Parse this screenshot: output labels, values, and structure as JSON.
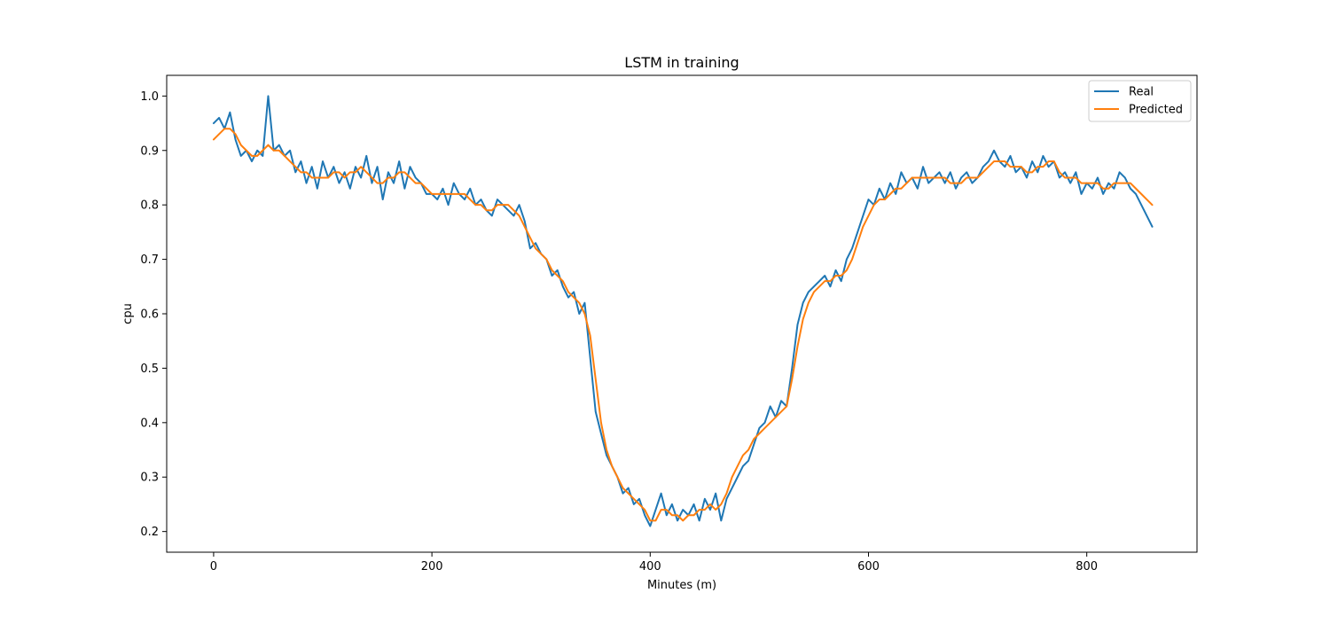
{
  "chart_data": {
    "type": "line",
    "title": "LSTM in training",
    "xlabel": "Minutes (m)",
    "ylabel": "cpu",
    "xlim": [
      -43,
      901
    ],
    "ylim": [
      0.162,
      1.038
    ],
    "xticks": [
      0,
      200,
      400,
      600,
      800
    ],
    "xtick_labels": [
      "0",
      "200",
      "400",
      "600",
      "800"
    ],
    "yticks": [
      0.2,
      0.3,
      0.4,
      0.5,
      0.6,
      0.7,
      0.8,
      0.9,
      1.0
    ],
    "ytick_labels": [
      "0.2",
      "0.3",
      "0.4",
      "0.5",
      "0.6",
      "0.7",
      "0.8",
      "0.9",
      "1.0"
    ],
    "grid": false,
    "legend_position": "top-right",
    "series": [
      {
        "name": "Real",
        "color": "#1f77b4",
        "x": [
          0,
          5,
          10,
          15,
          20,
          25,
          30,
          35,
          40,
          45,
          50,
          55,
          60,
          65,
          70,
          75,
          80,
          85,
          90,
          95,
          100,
          105,
          110,
          115,
          120,
          125,
          130,
          135,
          140,
          145,
          150,
          155,
          160,
          165,
          170,
          175,
          180,
          185,
          190,
          195,
          200,
          205,
          210,
          215,
          220,
          225,
          230,
          235,
          240,
          245,
          250,
          255,
          260,
          265,
          270,
          275,
          280,
          285,
          290,
          295,
          300,
          305,
          310,
          315,
          320,
          325,
          330,
          335,
          340,
          345,
          350,
          355,
          360,
          365,
          370,
          375,
          380,
          385,
          390,
          395,
          400,
          405,
          410,
          415,
          420,
          425,
          430,
          435,
          440,
          445,
          450,
          455,
          460,
          465,
          470,
          475,
          480,
          485,
          490,
          495,
          500,
          505,
          510,
          515,
          520,
          525,
          530,
          535,
          540,
          545,
          550,
          555,
          560,
          565,
          570,
          575,
          580,
          585,
          590,
          595,
          600,
          605,
          610,
          615,
          620,
          625,
          630,
          635,
          640,
          645,
          650,
          655,
          660,
          665,
          670,
          675,
          680,
          685,
          690,
          695,
          700,
          705,
          710,
          715,
          720,
          725,
          730,
          735,
          740,
          745,
          750,
          755,
          760,
          765,
          770,
          775,
          780,
          785,
          790,
          795,
          800,
          805,
          810,
          815,
          820,
          825,
          830,
          835,
          840,
          845,
          850,
          855,
          860
        ],
        "values": [
          0.95,
          0.96,
          0.94,
          0.97,
          0.92,
          0.89,
          0.9,
          0.88,
          0.9,
          0.89,
          1.0,
          0.9,
          0.91,
          0.89,
          0.9,
          0.86,
          0.88,
          0.84,
          0.87,
          0.83,
          0.88,
          0.85,
          0.87,
          0.84,
          0.86,
          0.83,
          0.87,
          0.85,
          0.89,
          0.84,
          0.87,
          0.81,
          0.86,
          0.84,
          0.88,
          0.83,
          0.87,
          0.85,
          0.84,
          0.82,
          0.82,
          0.81,
          0.83,
          0.8,
          0.84,
          0.82,
          0.81,
          0.83,
          0.8,
          0.81,
          0.79,
          0.78,
          0.81,
          0.8,
          0.79,
          0.78,
          0.8,
          0.77,
          0.72,
          0.73,
          0.71,
          0.7,
          0.67,
          0.68,
          0.65,
          0.63,
          0.64,
          0.6,
          0.62,
          0.52,
          0.42,
          0.38,
          0.34,
          0.32,
          0.3,
          0.27,
          0.28,
          0.25,
          0.26,
          0.23,
          0.21,
          0.24,
          0.27,
          0.23,
          0.25,
          0.22,
          0.24,
          0.23,
          0.25,
          0.22,
          0.26,
          0.24,
          0.27,
          0.22,
          0.26,
          0.28,
          0.3,
          0.32,
          0.33,
          0.36,
          0.39,
          0.4,
          0.43,
          0.41,
          0.44,
          0.43,
          0.5,
          0.58,
          0.62,
          0.64,
          0.65,
          0.66,
          0.67,
          0.65,
          0.68,
          0.66,
          0.7,
          0.72,
          0.75,
          0.78,
          0.81,
          0.8,
          0.83,
          0.81,
          0.84,
          0.82,
          0.86,
          0.84,
          0.85,
          0.83,
          0.87,
          0.84,
          0.85,
          0.86,
          0.84,
          0.86,
          0.83,
          0.85,
          0.86,
          0.84,
          0.85,
          0.87,
          0.88,
          0.9,
          0.88,
          0.87,
          0.89,
          0.86,
          0.87,
          0.85,
          0.88,
          0.86,
          0.89,
          0.87,
          0.88,
          0.85,
          0.86,
          0.84,
          0.86,
          0.82,
          0.84,
          0.83,
          0.85,
          0.82,
          0.84,
          0.83,
          0.86,
          0.85,
          0.83,
          0.82,
          0.8,
          0.78,
          0.76
        ],
        "line_width": 2
      },
      {
        "name": "Predicted",
        "color": "#ff7f0e",
        "x": [
          0,
          5,
          10,
          15,
          20,
          25,
          30,
          35,
          40,
          45,
          50,
          55,
          60,
          65,
          70,
          75,
          80,
          85,
          90,
          95,
          100,
          105,
          110,
          115,
          120,
          125,
          130,
          135,
          140,
          145,
          150,
          155,
          160,
          165,
          170,
          175,
          180,
          185,
          190,
          195,
          200,
          205,
          210,
          215,
          220,
          225,
          230,
          235,
          240,
          245,
          250,
          255,
          260,
          265,
          270,
          275,
          280,
          285,
          290,
          295,
          300,
          305,
          310,
          315,
          320,
          325,
          330,
          335,
          340,
          345,
          350,
          355,
          360,
          365,
          370,
          375,
          380,
          385,
          390,
          395,
          400,
          405,
          410,
          415,
          420,
          425,
          430,
          435,
          440,
          445,
          450,
          455,
          460,
          465,
          470,
          475,
          480,
          485,
          490,
          495,
          500,
          505,
          510,
          515,
          520,
          525,
          530,
          535,
          540,
          545,
          550,
          555,
          560,
          565,
          570,
          575,
          580,
          585,
          590,
          595,
          600,
          605,
          610,
          615,
          620,
          625,
          630,
          635,
          640,
          645,
          650,
          655,
          660,
          665,
          670,
          675,
          680,
          685,
          690,
          695,
          700,
          705,
          710,
          715,
          720,
          725,
          730,
          735,
          740,
          745,
          750,
          755,
          760,
          765,
          770,
          775,
          780,
          785,
          790,
          795,
          800,
          805,
          810,
          815,
          820,
          825,
          830,
          835,
          840,
          845,
          850,
          855,
          860
        ],
        "values": [
          0.92,
          0.93,
          0.94,
          0.94,
          0.93,
          0.91,
          0.9,
          0.89,
          0.89,
          0.9,
          0.91,
          0.9,
          0.9,
          0.89,
          0.88,
          0.87,
          0.86,
          0.86,
          0.85,
          0.85,
          0.85,
          0.85,
          0.86,
          0.86,
          0.85,
          0.86,
          0.86,
          0.87,
          0.86,
          0.85,
          0.84,
          0.84,
          0.85,
          0.85,
          0.86,
          0.86,
          0.85,
          0.84,
          0.84,
          0.83,
          0.82,
          0.82,
          0.82,
          0.82,
          0.82,
          0.82,
          0.82,
          0.81,
          0.8,
          0.8,
          0.79,
          0.79,
          0.8,
          0.8,
          0.8,
          0.79,
          0.78,
          0.76,
          0.74,
          0.72,
          0.71,
          0.7,
          0.68,
          0.67,
          0.66,
          0.64,
          0.63,
          0.62,
          0.6,
          0.56,
          0.48,
          0.4,
          0.35,
          0.32,
          0.3,
          0.28,
          0.27,
          0.26,
          0.25,
          0.24,
          0.22,
          0.22,
          0.24,
          0.24,
          0.23,
          0.23,
          0.22,
          0.23,
          0.23,
          0.24,
          0.24,
          0.25,
          0.24,
          0.25,
          0.27,
          0.3,
          0.32,
          0.34,
          0.35,
          0.37,
          0.38,
          0.39,
          0.4,
          0.41,
          0.42,
          0.43,
          0.48,
          0.54,
          0.59,
          0.62,
          0.64,
          0.65,
          0.66,
          0.66,
          0.67,
          0.67,
          0.68,
          0.7,
          0.73,
          0.76,
          0.78,
          0.8,
          0.81,
          0.81,
          0.82,
          0.83,
          0.83,
          0.84,
          0.85,
          0.85,
          0.85,
          0.85,
          0.85,
          0.85,
          0.85,
          0.84,
          0.84,
          0.84,
          0.85,
          0.85,
          0.85,
          0.86,
          0.87,
          0.88,
          0.88,
          0.88,
          0.87,
          0.87,
          0.87,
          0.86,
          0.86,
          0.87,
          0.87,
          0.88,
          0.88,
          0.86,
          0.85,
          0.85,
          0.85,
          0.84,
          0.84,
          0.84,
          0.84,
          0.83,
          0.83,
          0.84,
          0.84,
          0.84,
          0.84,
          0.83,
          0.82,
          0.81,
          0.8
        ],
        "line_width": 2
      }
    ]
  }
}
